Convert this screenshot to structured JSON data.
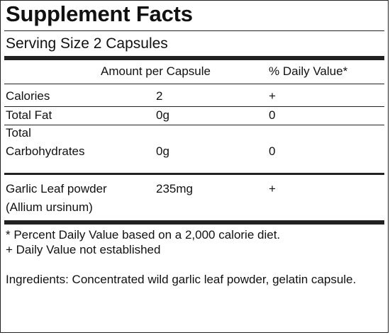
{
  "label": {
    "title": "Supplement Facts",
    "serving_size": "Serving Size 2 Capsules",
    "col_amount_header": "Amount per Capsule",
    "col_dv_header": "% Daily Value*",
    "rows": [
      {
        "name_lines": [
          "Calories"
        ],
        "amount": "2",
        "dv": "+"
      },
      {
        "name_lines": [
          "Total Fat"
        ],
        "amount": "0g",
        "dv": "0"
      },
      {
        "name_lines": [
          "Total",
          "Carbohydrates"
        ],
        "amount": "0g",
        "dv": "0"
      },
      {
        "name_lines": [
          "Garlic Leaf powder",
          "(Allium ursinum)"
        ],
        "amount": "235mg",
        "dv": "+"
      }
    ],
    "footnote_1": "* Percent Daily Value based on a 2,000 calorie diet.",
    "footnote_2": "+ Daily Value not established",
    "ingredients": "Ingredients: Concentrated wild garlic leaf powder, gelatin capsule."
  }
}
